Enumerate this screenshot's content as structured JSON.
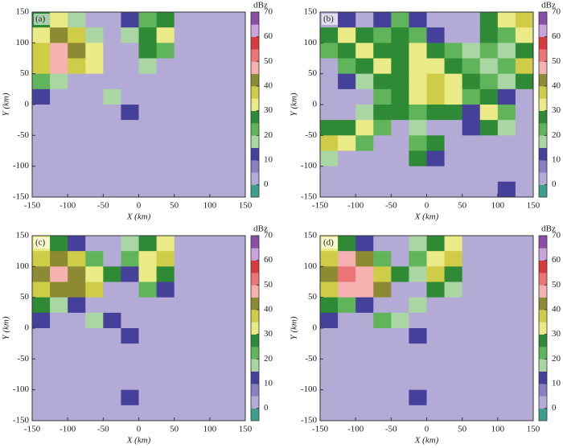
{
  "chart_data": [
    {
      "type": "heatmap",
      "title": "(a)",
      "xlabel": "X (km)",
      "ylabel": "Y (km)",
      "colorbar_label": "dBz",
      "xlim": [
        -150,
        150
      ],
      "ylim": [
        -150,
        150
      ],
      "xticks": [
        -150,
        -100,
        -50,
        0,
        50,
        100,
        150
      ],
      "yticks": [
        -150,
        -100,
        -50,
        0,
        50,
        100,
        150
      ],
      "clim": [
        -5,
        70
      ],
      "cticks": [
        0,
        10,
        20,
        30,
        40,
        50,
        60,
        70
      ],
      "colors": [
        "#3f9f8f",
        "#b3abd6",
        "#8a80c4",
        "#45409a",
        "#a9d6a3",
        "#60b55a",
        "#2e8a34",
        "#eaea86",
        "#cfcd48",
        "#8c8a33",
        "#f5b0b0",
        "#ec7575",
        "#d73b3b",
        "#c9a4dc",
        "#8b4ea6"
      ],
      "x": [
        -137.5,
        -112.5,
        -87.5,
        -62.5,
        -37.5,
        -12.5,
        12.5,
        37.5,
        62.5,
        87.5,
        112.5,
        137.5
      ],
      "y": [
        137.5,
        112.5,
        87.5,
        62.5,
        37.5,
        12.5,
        -12.5,
        -37.5,
        -62.5,
        -87.5,
        -112.5,
        -137.5
      ],
      "z": [
        [
          25,
          30,
          15,
          2,
          2,
          10,
          20,
          25,
          2,
          2,
          2,
          2
        ],
        [
          30,
          40,
          35,
          15,
          2,
          15,
          25,
          30,
          2,
          2,
          2,
          2
        ],
        [
          35,
          45,
          40,
          30,
          2,
          2,
          25,
          20,
          2,
          2,
          2,
          2
        ],
        [
          35,
          45,
          35,
          30,
          2,
          2,
          15,
          2,
          2,
          2,
          2,
          2
        ],
        [
          20,
          15,
          2,
          2,
          2,
          2,
          2,
          2,
          2,
          2,
          2,
          2
        ],
        [
          10,
          2,
          2,
          2,
          15,
          2,
          2,
          2,
          2,
          2,
          2,
          2
        ],
        [
          2,
          2,
          2,
          2,
          2,
          10,
          2,
          2,
          2,
          2,
          2,
          2
        ],
        [
          2,
          2,
          2,
          2,
          2,
          2,
          2,
          2,
          2,
          2,
          2,
          2
        ],
        [
          2,
          2,
          2,
          2,
          2,
          2,
          2,
          2,
          2,
          2,
          2,
          2
        ],
        [
          2,
          2,
          2,
          2,
          2,
          2,
          2,
          2,
          2,
          2,
          2,
          2
        ],
        [
          2,
          2,
          2,
          2,
          2,
          2,
          2,
          2,
          2,
          2,
          2,
          2
        ],
        [
          2,
          2,
          2,
          2,
          2,
          2,
          2,
          2,
          2,
          2,
          2,
          2
        ]
      ]
    },
    {
      "type": "heatmap",
      "title": "(b)",
      "xlabel": "X (km)",
      "ylabel": "Y (km)",
      "colorbar_label": "dBz",
      "xlim": [
        -150,
        150
      ],
      "ylim": [
        -150,
        150
      ],
      "xticks": [
        -150,
        -100,
        -50,
        0,
        50,
        100,
        150
      ],
      "yticks": [
        -150,
        -100,
        -50,
        0,
        50,
        100,
        150
      ],
      "clim": [
        -5,
        70
      ],
      "cticks": [
        0,
        10,
        20,
        30,
        40,
        50,
        60,
        70
      ],
      "colors": [
        "#3f9f8f",
        "#b3abd6",
        "#8a80c4",
        "#45409a",
        "#a9d6a3",
        "#60b55a",
        "#2e8a34",
        "#eaea86",
        "#cfcd48",
        "#8c8a33",
        "#f5b0b0",
        "#ec7575",
        "#d73b3b",
        "#c9a4dc",
        "#8b4ea6"
      ],
      "x": [
        -137.5,
        -112.5,
        -87.5,
        -62.5,
        -37.5,
        -12.5,
        12.5,
        37.5,
        62.5,
        87.5,
        112.5,
        137.5
      ],
      "y": [
        137.5,
        112.5,
        87.5,
        62.5,
        37.5,
        12.5,
        -12.5,
        -37.5,
        -62.5,
        -87.5,
        -112.5,
        -137.5
      ],
      "z": [
        [
          2,
          10,
          2,
          10,
          20,
          10,
          2,
          2,
          2,
          25,
          30,
          35
        ],
        [
          25,
          30,
          25,
          20,
          25,
          20,
          10,
          2,
          2,
          25,
          20,
          30
        ],
        [
          20,
          25,
          30,
          25,
          25,
          30,
          25,
          20,
          15,
          20,
          15,
          25
        ],
        [
          2,
          20,
          25,
          30,
          25,
          30,
          30,
          25,
          20,
          15,
          20,
          35
        ],
        [
          2,
          10,
          15,
          25,
          25,
          30,
          35,
          30,
          25,
          20,
          15,
          25
        ],
        [
          2,
          2,
          2,
          20,
          25,
          30,
          35,
          30,
          20,
          25,
          10,
          2
        ],
        [
          2,
          2,
          15,
          25,
          25,
          20,
          25,
          25,
          10,
          30,
          20,
          2
        ],
        [
          25,
          25,
          30,
          20,
          2,
          15,
          2,
          2,
          10,
          25,
          15,
          2
        ],
        [
          35,
          30,
          20,
          2,
          2,
          20,
          25,
          2,
          2,
          2,
          2,
          2
        ],
        [
          15,
          2,
          2,
          2,
          2,
          25,
          10,
          2,
          2,
          2,
          2,
          2
        ],
        [
          2,
          2,
          2,
          2,
          2,
          2,
          2,
          2,
          2,
          2,
          2,
          2
        ],
        [
          2,
          2,
          2,
          2,
          2,
          2,
          2,
          2,
          2,
          2,
          10,
          2
        ]
      ]
    },
    {
      "type": "heatmap",
      "title": "(c)",
      "xlabel": "X (km)",
      "ylabel": "Y (km)",
      "colorbar_label": "dBz",
      "xlim": [
        -150,
        150
      ],
      "ylim": [
        -150,
        150
      ],
      "xticks": [
        -150,
        -100,
        -50,
        0,
        50,
        100,
        150
      ],
      "yticks": [
        -150,
        -100,
        -50,
        0,
        50,
        100,
        150
      ],
      "clim": [
        -5,
        70
      ],
      "cticks": [
        0,
        10,
        20,
        30,
        40,
        50,
        60,
        70
      ],
      "colors": [
        "#3f9f8f",
        "#b3abd6",
        "#8a80c4",
        "#45409a",
        "#a9d6a3",
        "#60b55a",
        "#2e8a34",
        "#eaea86",
        "#cfcd48",
        "#8c8a33",
        "#f5b0b0",
        "#ec7575",
        "#d73b3b",
        "#c9a4dc",
        "#8b4ea6"
      ],
      "x": [
        -137.5,
        -112.5,
        -87.5,
        -62.5,
        -37.5,
        -12.5,
        12.5,
        37.5,
        62.5,
        87.5,
        112.5,
        137.5
      ],
      "y": [
        137.5,
        112.5,
        87.5,
        62.5,
        37.5,
        12.5,
        -12.5,
        -37.5,
        -62.5,
        -87.5,
        -112.5,
        -137.5
      ],
      "z": [
        [
          30,
          25,
          10,
          2,
          2,
          15,
          25,
          30,
          2,
          2,
          2,
          2
        ],
        [
          35,
          40,
          35,
          20,
          2,
          20,
          30,
          35,
          2,
          2,
          2,
          2
        ],
        [
          40,
          45,
          40,
          30,
          25,
          10,
          30,
          25,
          2,
          2,
          2,
          2
        ],
        [
          35,
          40,
          40,
          35,
          2,
          2,
          20,
          10,
          2,
          2,
          2,
          2
        ],
        [
          25,
          15,
          10,
          2,
          2,
          2,
          2,
          2,
          2,
          2,
          2,
          2
        ],
        [
          10,
          2,
          2,
          15,
          10,
          2,
          2,
          2,
          2,
          2,
          2,
          2
        ],
        [
          2,
          2,
          2,
          2,
          2,
          10,
          2,
          2,
          2,
          2,
          2,
          2
        ],
        [
          2,
          2,
          2,
          2,
          2,
          2,
          2,
          2,
          2,
          2,
          2,
          2
        ],
        [
          2,
          2,
          2,
          2,
          2,
          2,
          2,
          2,
          2,
          2,
          2,
          2
        ],
        [
          2,
          2,
          2,
          2,
          2,
          2,
          2,
          2,
          2,
          2,
          2,
          2
        ],
        [
          2,
          2,
          2,
          2,
          2,
          10,
          2,
          2,
          2,
          2,
          2,
          2
        ],
        [
          2,
          2,
          2,
          2,
          2,
          2,
          2,
          2,
          2,
          2,
          2,
          2
        ]
      ]
    },
    {
      "type": "heatmap",
      "title": "(d)",
      "xlabel": "X (km)",
      "ylabel": "Y (km)",
      "colorbar_label": "dBz",
      "xlim": [
        -150,
        150
      ],
      "ylim": [
        -150,
        150
      ],
      "xticks": [
        -150,
        -100,
        -50,
        0,
        50,
        100,
        150
      ],
      "yticks": [
        -150,
        -100,
        -50,
        0,
        50,
        100,
        150
      ],
      "clim": [
        -5,
        70
      ],
      "cticks": [
        0,
        10,
        20,
        30,
        40,
        50,
        60,
        70
      ],
      "colors": [
        "#3f9f8f",
        "#b3abd6",
        "#8a80c4",
        "#45409a",
        "#a9d6a3",
        "#60b55a",
        "#2e8a34",
        "#eaea86",
        "#cfcd48",
        "#8c8a33",
        "#f5b0b0",
        "#ec7575",
        "#d73b3b",
        "#c9a4dc",
        "#8b4ea6"
      ],
      "x": [
        -137.5,
        -112.5,
        -87.5,
        -62.5,
        -37.5,
        -12.5,
        12.5,
        37.5,
        62.5,
        87.5,
        112.5,
        137.5
      ],
      "y": [
        137.5,
        112.5,
        87.5,
        62.5,
        37.5,
        12.5,
        -12.5,
        -37.5,
        -62.5,
        -87.5,
        -112.5,
        -137.5
      ],
      "z": [
        [
          30,
          25,
          10,
          2,
          2,
          15,
          25,
          30,
          2,
          2,
          2,
          2
        ],
        [
          35,
          45,
          40,
          20,
          2,
          20,
          30,
          35,
          2,
          2,
          2,
          2
        ],
        [
          40,
          50,
          45,
          35,
          25,
          15,
          35,
          25,
          2,
          2,
          2,
          2
        ],
        [
          35,
          45,
          45,
          40,
          2,
          2,
          25,
          15,
          2,
          2,
          2,
          2
        ],
        [
          25,
          20,
          10,
          2,
          2,
          15,
          2,
          2,
          2,
          2,
          2,
          2
        ],
        [
          10,
          2,
          2,
          20,
          15,
          2,
          2,
          2,
          2,
          2,
          2,
          2
        ],
        [
          2,
          2,
          2,
          2,
          2,
          10,
          2,
          2,
          2,
          2,
          2,
          2
        ],
        [
          2,
          2,
          2,
          2,
          2,
          2,
          2,
          2,
          2,
          2,
          2,
          2
        ],
        [
          2,
          2,
          2,
          2,
          2,
          2,
          2,
          2,
          2,
          2,
          2,
          2
        ],
        [
          2,
          2,
          2,
          2,
          2,
          2,
          2,
          2,
          2,
          2,
          2,
          2
        ],
        [
          2,
          2,
          2,
          2,
          2,
          10,
          2,
          2,
          2,
          2,
          2,
          2
        ],
        [
          2,
          2,
          2,
          2,
          2,
          2,
          2,
          2,
          2,
          2,
          2,
          2
        ]
      ]
    }
  ]
}
